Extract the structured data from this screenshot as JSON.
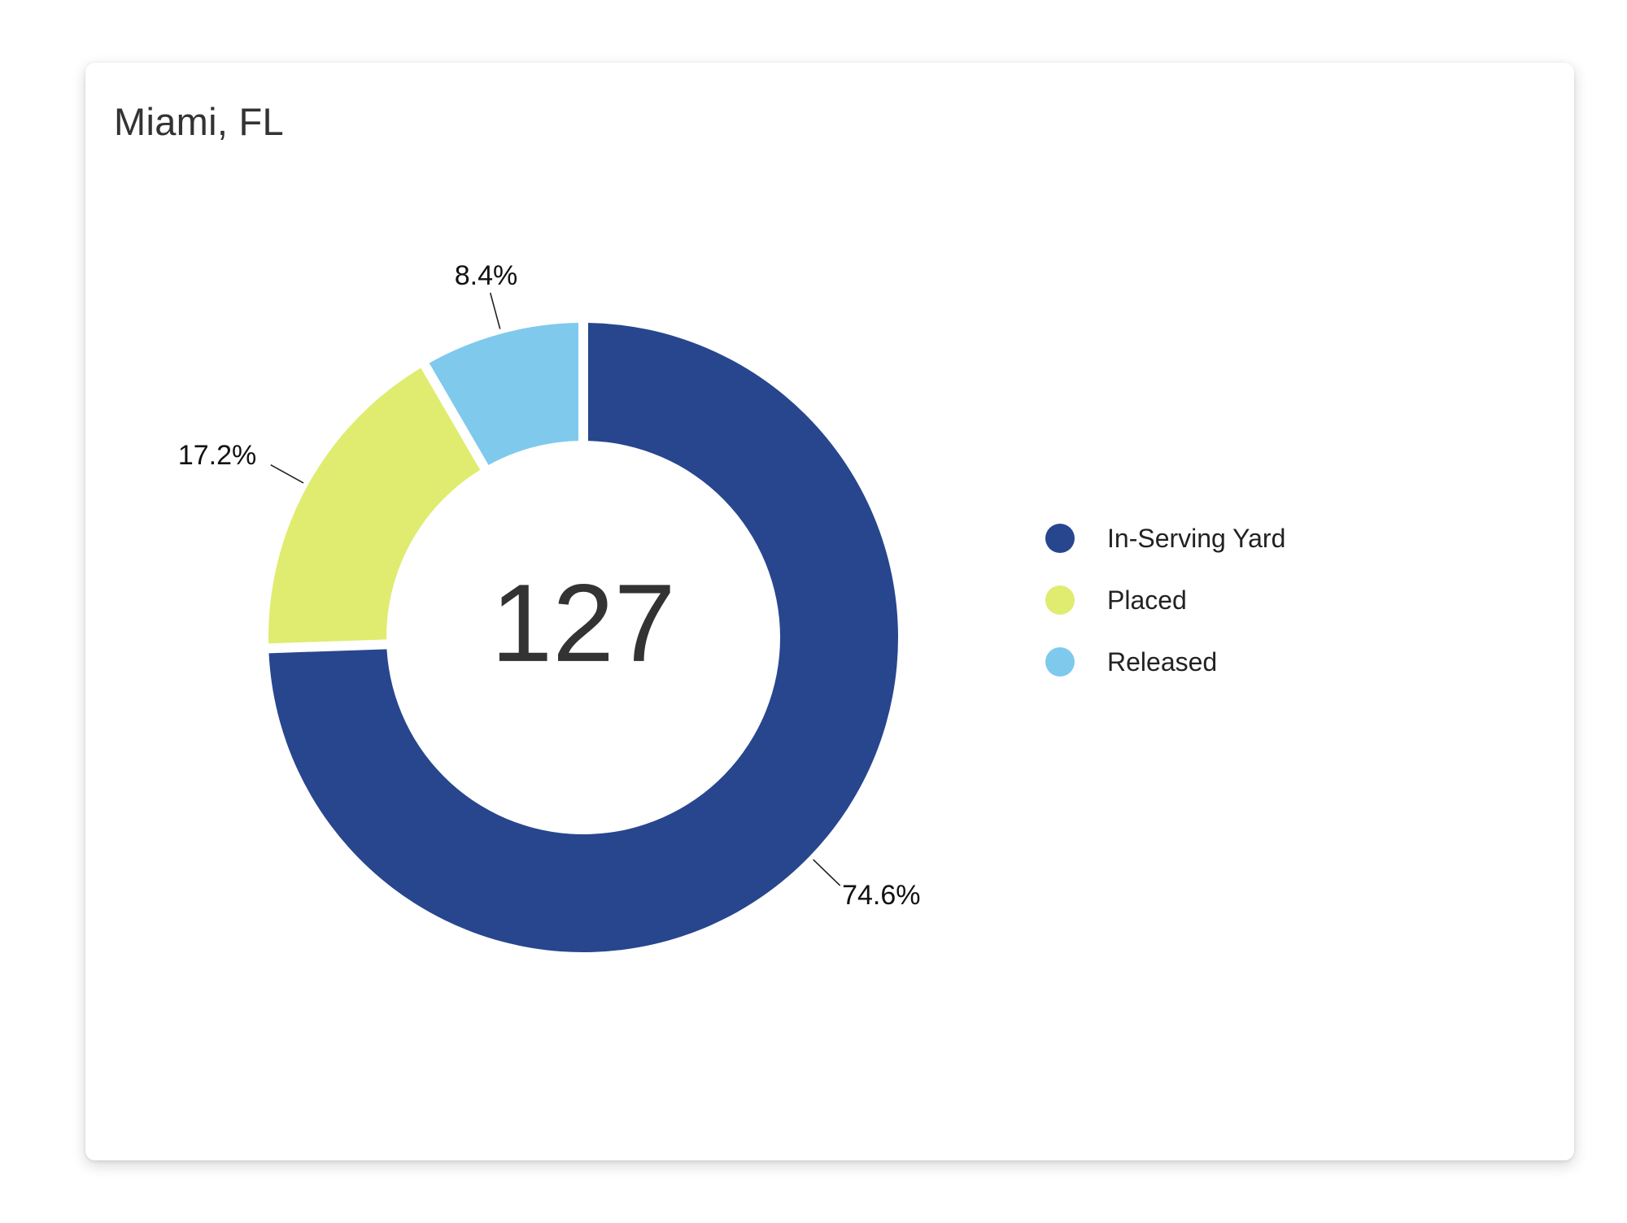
{
  "card": {
    "title": "Miami, FL"
  },
  "chart_data": {
    "type": "pie",
    "variant": "donut",
    "total_label": "127",
    "categories": [
      "In-Serving Yard",
      "Placed",
      "Released"
    ],
    "values": [
      74.6,
      17.2,
      8.4
    ],
    "value_labels": [
      "74.6%",
      "17.2%",
      "8.4%"
    ],
    "colors": [
      "#27468e",
      "#dfec6f",
      "#7fc9ed"
    ],
    "legend_position": "right"
  }
}
